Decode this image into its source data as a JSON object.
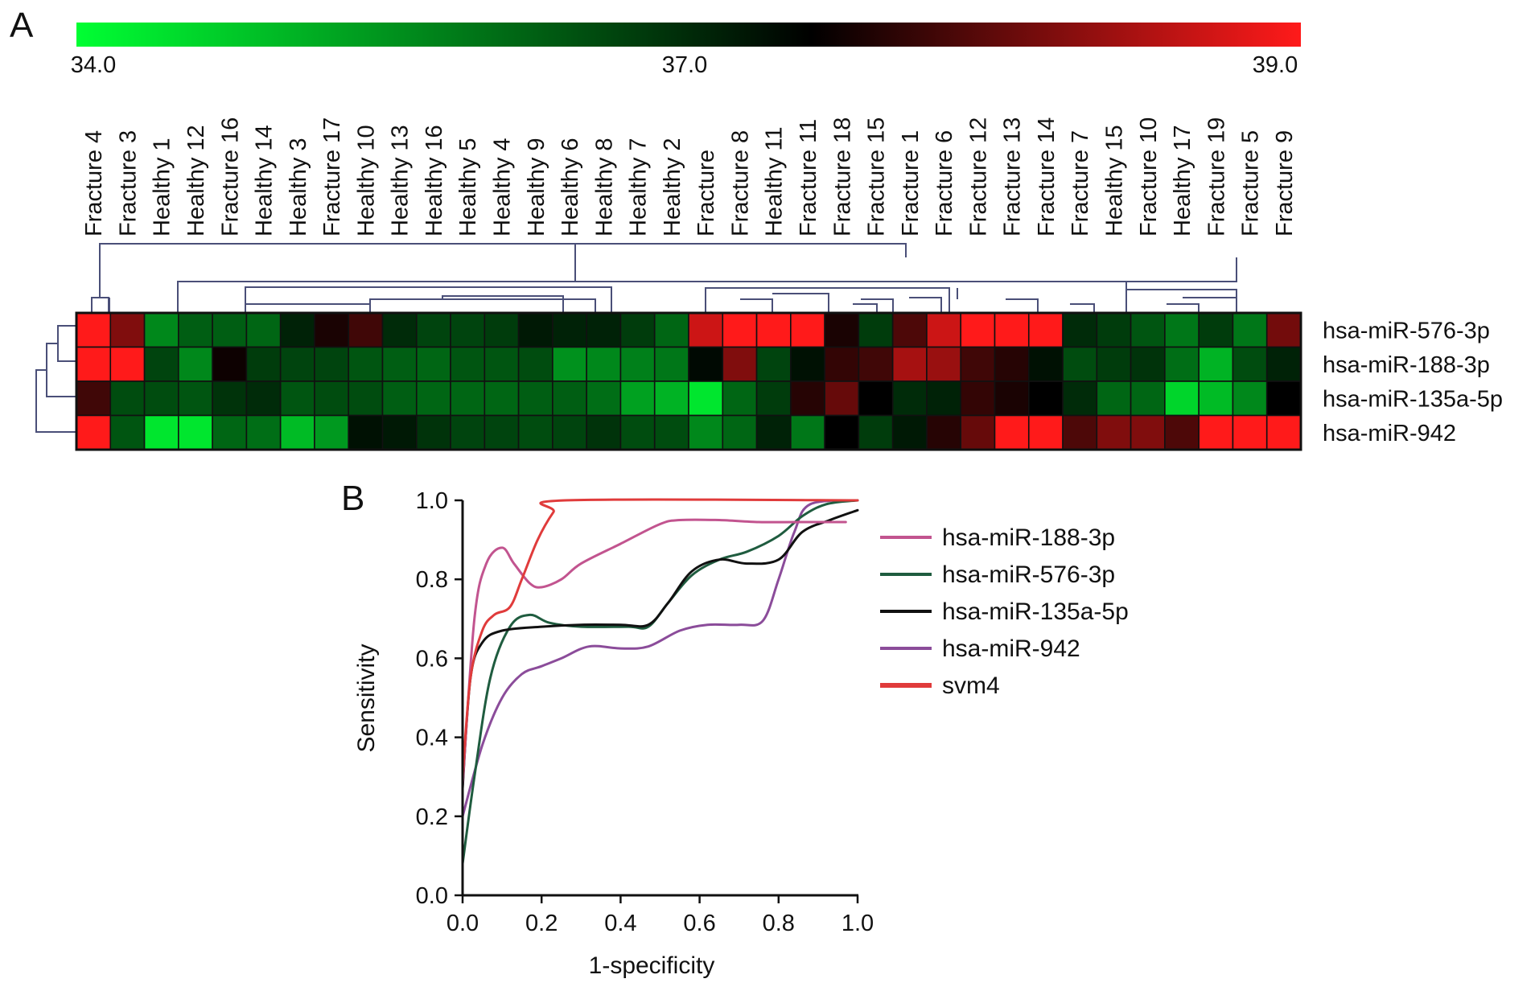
{
  "panels": {
    "a_label": "A",
    "b_label": "B"
  },
  "chart_data": [
    {
      "type": "heatmap",
      "colorbar": {
        "min": 34.0,
        "mid": 37.0,
        "max": 39.0,
        "tick_labels": [
          "34.0",
          "37.0",
          "39.0"
        ],
        "colors": {
          "low": "#00ff33",
          "mid": "#000000",
          "high": "#ff1a1a"
        }
      },
      "columns": [
        "Fracture 4",
        "Fracture 3",
        "Healthy 1",
        "Healthy 12",
        "Fracture 16",
        "Healthy 14",
        "Healthy 3",
        "Fracture 17",
        "Healthy 10",
        "Healthy 13",
        "Healthy 16",
        "Healthy 5",
        "Healthy 4",
        "Healthy 9",
        "Healthy 6",
        "Healthy 8",
        "Healthy 7",
        "Healthy 2",
        "Fracture",
        "Fracture 8",
        "Healthy 11",
        "Fracture 11",
        "Fracture 18",
        "Fracture 15",
        "Fracture 1",
        "Fracture 6",
        "Fracture 12",
        "Fracture 13",
        "Fracture 14",
        "Fracture 7",
        "Healthy 15",
        "Fracture 10",
        "Healthy 17",
        "Fracture 19",
        "Fracture 5",
        "Fracture 9"
      ],
      "rows": [
        "hsa-miR-576-3p",
        "hsa-miR-188-3p",
        "hsa-miR-135a-5p",
        "hsa-miR-942"
      ],
      "values": [
        [
          39.0,
          38.0,
          35.4,
          35.9,
          35.9,
          35.8,
          36.6,
          37.2,
          37.5,
          36.5,
          36.2,
          36.2,
          36.3,
          36.7,
          36.6,
          36.6,
          36.3,
          35.8,
          38.6,
          39.0,
          39.0,
          39.0,
          37.2,
          36.3,
          37.6,
          38.6,
          39.0,
          39.0,
          39.0,
          36.5,
          36.3,
          36.0,
          35.6,
          36.3,
          35.6,
          37.9
        ],
        [
          39.0,
          39.0,
          36.2,
          35.4,
          37.1,
          36.3,
          36.2,
          36.2,
          36.0,
          35.9,
          35.8,
          36.0,
          36.0,
          36.1,
          35.3,
          35.4,
          35.5,
          35.6,
          36.9,
          38.0,
          36.2,
          36.8,
          37.4,
          37.5,
          38.3,
          38.2,
          37.5,
          37.3,
          36.8,
          36.1,
          36.3,
          36.4,
          35.7,
          34.9,
          36.1,
          36.6
        ],
        [
          37.5,
          36.1,
          36.1,
          36.0,
          36.4,
          36.5,
          36.0,
          36.1,
          36.1,
          35.9,
          35.8,
          35.8,
          35.8,
          35.9,
          35.9,
          35.7,
          35.1,
          34.9,
          34.3,
          35.8,
          36.3,
          37.3,
          37.8,
          37.0,
          36.5,
          36.6,
          37.4,
          37.2,
          37.0,
          36.5,
          35.8,
          35.8,
          34.5,
          34.8,
          35.4,
          37.0
        ],
        [
          39.0,
          36.0,
          34.3,
          34.3,
          35.8,
          35.7,
          34.8,
          35.2,
          36.8,
          36.7,
          36.4,
          36.2,
          36.2,
          36.1,
          36.2,
          36.4,
          36.1,
          36.1,
          35.4,
          35.8,
          36.6,
          35.6,
          37.0,
          36.3,
          36.7,
          37.3,
          37.8,
          39.0,
          39.0,
          37.6,
          38.0,
          38.0,
          37.6,
          39.0,
          39.0,
          39.0
        ]
      ]
    },
    {
      "type": "line",
      "xlabel": "1-specificity",
      "ylabel": "Sensitivity",
      "xlim": [
        0.0,
        1.0
      ],
      "ylim": [
        0.0,
        1.0
      ],
      "xticks": [
        "0.0",
        "0.2",
        "0.4",
        "0.6",
        "0.8",
        "1.0"
      ],
      "yticks": [
        "0.0",
        "0.2",
        "0.4",
        "0.6",
        "0.8",
        "1.0"
      ],
      "grid": false,
      "legend_position": "right",
      "series": [
        {
          "name": "hsa-miR-188-3p",
          "color": "#c2548f",
          "points": [
            [
              0.0,
              0.28
            ],
            [
              0.03,
              0.7
            ],
            [
              0.06,
              0.84
            ],
            [
              0.1,
              0.88
            ],
            [
              0.13,
              0.84
            ],
            [
              0.17,
              0.79
            ],
            [
              0.2,
              0.78
            ],
            [
              0.25,
              0.8
            ],
            [
              0.3,
              0.84
            ],
            [
              0.4,
              0.89
            ],
            [
              0.5,
              0.94
            ],
            [
              0.55,
              0.95
            ],
            [
              0.65,
              0.95
            ],
            [
              0.75,
              0.945
            ],
            [
              0.85,
              0.945
            ],
            [
              0.97,
              0.945
            ]
          ]
        },
        {
          "name": "hsa-miR-576-3p",
          "color": "#1f5c3f",
          "points": [
            [
              0.0,
              0.08
            ],
            [
              0.03,
              0.3
            ],
            [
              0.07,
              0.55
            ],
            [
              0.12,
              0.68
            ],
            [
              0.17,
              0.71
            ],
            [
              0.22,
              0.69
            ],
            [
              0.3,
              0.68
            ],
            [
              0.42,
              0.68
            ],
            [
              0.47,
              0.68
            ],
            [
              0.52,
              0.74
            ],
            [
              0.58,
              0.81
            ],
            [
              0.65,
              0.85
            ],
            [
              0.72,
              0.87
            ],
            [
              0.8,
              0.91
            ],
            [
              0.86,
              0.96
            ],
            [
              0.92,
              0.99
            ],
            [
              1.0,
              1.0
            ]
          ]
        },
        {
          "name": "hsa-miR-135a-5p",
          "color": "#111111",
          "points": [
            [
              0.0,
              0.27
            ],
            [
              0.02,
              0.55
            ],
            [
              0.05,
              0.64
            ],
            [
              0.1,
              0.67
            ],
            [
              0.2,
              0.68
            ],
            [
              0.3,
              0.685
            ],
            [
              0.4,
              0.685
            ],
            [
              0.47,
              0.685
            ],
            [
              0.52,
              0.74
            ],
            [
              0.58,
              0.82
            ],
            [
              0.65,
              0.85
            ],
            [
              0.72,
              0.84
            ],
            [
              0.8,
              0.85
            ],
            [
              0.86,
              0.92
            ],
            [
              0.93,
              0.95
            ],
            [
              1.0,
              0.975
            ]
          ]
        },
        {
          "name": "hsa-miR-942",
          "color": "#8b4c9a",
          "points": [
            [
              0.0,
              0.2
            ],
            [
              0.05,
              0.38
            ],
            [
              0.1,
              0.5
            ],
            [
              0.15,
              0.56
            ],
            [
              0.2,
              0.58
            ],
            [
              0.25,
              0.6
            ],
            [
              0.32,
              0.63
            ],
            [
              0.4,
              0.625
            ],
            [
              0.47,
              0.63
            ],
            [
              0.55,
              0.67
            ],
            [
              0.62,
              0.685
            ],
            [
              0.7,
              0.685
            ],
            [
              0.76,
              0.695
            ],
            [
              0.8,
              0.8
            ],
            [
              0.84,
              0.92
            ],
            [
              0.88,
              0.99
            ],
            [
              1.0,
              1.0
            ]
          ]
        },
        {
          "name": "svm4",
          "color": "#e03b3b",
          "points": [
            [
              0.0,
              0.3
            ],
            [
              0.02,
              0.55
            ],
            [
              0.05,
              0.67
            ],
            [
              0.08,
              0.71
            ],
            [
              0.12,
              0.73
            ],
            [
              0.15,
              0.8
            ],
            [
              0.19,
              0.9
            ],
            [
              0.23,
              0.97
            ],
            [
              0.26,
              1.0
            ],
            [
              1.0,
              1.0
            ]
          ]
        }
      ]
    }
  ]
}
